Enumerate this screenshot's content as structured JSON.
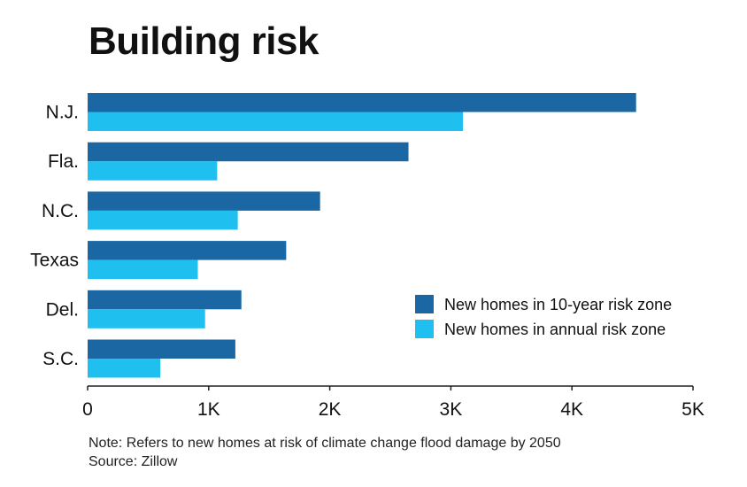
{
  "title": "Building risk",
  "chart_data": {
    "type": "bar",
    "orientation": "horizontal",
    "categories": [
      "N.J.",
      "Fla.",
      "N.C.",
      "Texas",
      "Del.",
      "S.C."
    ],
    "series": [
      {
        "name": "New homes in 10-year risk zone",
        "color": "#1a67a3",
        "values": [
          4530,
          2650,
          1920,
          1640,
          1270,
          1220
        ]
      },
      {
        "name": "New homes in annual risk zone",
        "color": "#1fc0ef",
        "values": [
          3100,
          1070,
          1240,
          910,
          970,
          600
        ]
      }
    ],
    "xlim": [
      0,
      5000
    ],
    "xticks": [
      0,
      1000,
      2000,
      3000,
      4000,
      5000
    ],
    "xtick_labels": [
      "0",
      "1K",
      "2K",
      "3K",
      "4K",
      "5K"
    ],
    "xlabel": "",
    "ylabel": "",
    "grid": false,
    "legend_position": "bottom-right"
  },
  "note": {
    "line1": "Note: Refers to new homes at risk of climate change flood damage by 2050",
    "line2": "Source: Zillow"
  }
}
